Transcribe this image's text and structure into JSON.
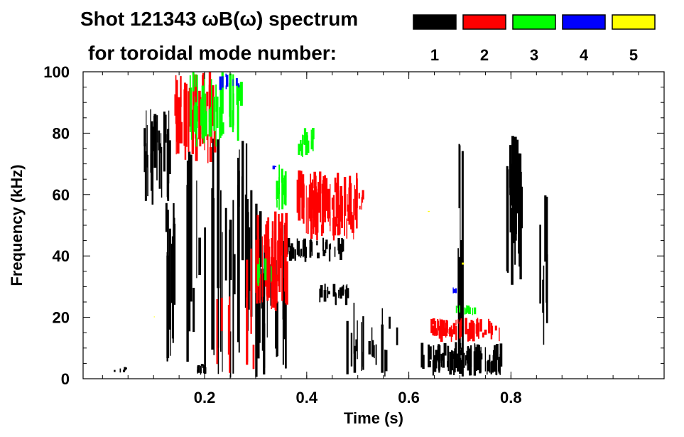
{
  "chart_data": {
    "type": "heatmap",
    "title_line1": "Shot 121343 ωB(ω) spectrum",
    "title_line2": "for toroidal mode number:",
    "xlabel": "Time (s)",
    "ylabel": "Frequency (kHz)",
    "xlim": [
      -0.038,
      1.1
    ],
    "ylim": [
      0,
      100
    ],
    "xticks": [
      0.2,
      0.4,
      0.6,
      0.8
    ],
    "xtick_labels": [
      "0.2",
      "0.4",
      "0.6",
      "0.8"
    ],
    "yticks": [
      0,
      20,
      40,
      60,
      80,
      100
    ],
    "ytick_labels": [
      "0",
      "20",
      "40",
      "60",
      "80",
      "100"
    ],
    "legend": [
      {
        "mode": "1",
        "color": "#000000"
      },
      {
        "mode": "2",
        "color": "#ff0000"
      },
      {
        "mode": "3",
        "color": "#00ff00"
      },
      {
        "mode": "4",
        "color": "#0000ff"
      },
      {
        "mode": "5",
        "color": "#ffff00"
      }
    ],
    "regions_note": "approximate spectral activity regions: [t_start, t_end, f_low, f_high, density]",
    "series": [
      {
        "mode": "1",
        "color": "#000000",
        "regions": [
          [
            0.08,
            0.13,
            55,
            88,
            30
          ],
          [
            0.12,
            0.14,
            5,
            62,
            14
          ],
          [
            0.16,
            0.3,
            0,
            80,
            40
          ],
          [
            0.3,
            0.36,
            0,
            55,
            16
          ],
          [
            0.36,
            0.47,
            38,
            46,
            40
          ],
          [
            0.42,
            0.48,
            24,
            31,
            20
          ],
          [
            0.47,
            0.58,
            0,
            25,
            20
          ],
          [
            0.62,
            0.78,
            1,
            12,
            90
          ],
          [
            0.79,
            0.82,
            30,
            82,
            26
          ],
          [
            0.18,
            0.2,
            1,
            5,
            12
          ],
          [
            0.695,
            0.705,
            0,
            100,
            6
          ],
          [
            0.85,
            0.87,
            1,
            62,
            6
          ],
          [
            0.02,
            0.05,
            2,
            4,
            5
          ]
        ]
      },
      {
        "mode": "2",
        "color": "#ff0000",
        "regions": [
          [
            0.14,
            0.22,
            70,
            100,
            50
          ],
          [
            0.3,
            0.36,
            22,
            55,
            50
          ],
          [
            0.38,
            0.5,
            45,
            68,
            70
          ],
          [
            0.5,
            0.51,
            55,
            62,
            5
          ],
          [
            0.64,
            0.78,
            12,
            20,
            60
          ],
          [
            0.22,
            0.3,
            0,
            50,
            8
          ]
        ]
      },
      {
        "mode": "3",
        "color": "#00ff00",
        "regions": [
          [
            0.17,
            0.27,
            75,
            100,
            40
          ],
          [
            0.33,
            0.36,
            55,
            70,
            14
          ],
          [
            0.38,
            0.42,
            72,
            82,
            14
          ],
          [
            0.69,
            0.73,
            20,
            24,
            10
          ],
          [
            0.3,
            0.33,
            30,
            40,
            5
          ]
        ]
      },
      {
        "mode": "4",
        "color": "#0000ff",
        "regions": [
          [
            0.22,
            0.27,
            94,
            100,
            8
          ],
          [
            0.685,
            0.695,
            27,
            30,
            3
          ],
          [
            0.33,
            0.34,
            68,
            70,
            2
          ]
        ]
      },
      {
        "mode": "5",
        "color": "#ffff00",
        "regions": [
          [
            0.63,
            0.64,
            54,
            55,
            1
          ],
          [
            0.7,
            0.71,
            37,
            38,
            1
          ],
          [
            0.1,
            0.11,
            20,
            21,
            1
          ]
        ]
      }
    ]
  }
}
